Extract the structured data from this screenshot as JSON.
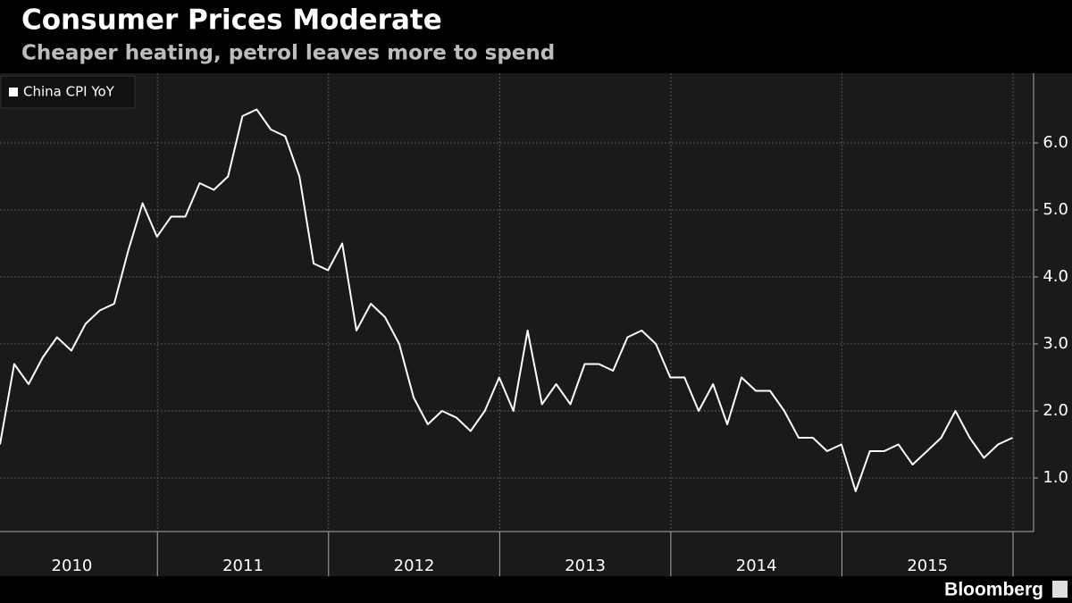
{
  "chart_data": {
    "type": "line",
    "title": "Consumer Prices Moderate",
    "subtitle": "Cheaper heating, petrol leaves more to spend",
    "source": "Bloomberg",
    "x": [
      2010,
      2010.083,
      2010.167,
      2010.25,
      2010.333,
      2010.417,
      2010.5,
      2010.583,
      2010.667,
      2010.75,
      2010.833,
      2010.917,
      2011,
      2011.083,
      2011.167,
      2011.25,
      2011.333,
      2011.417,
      2011.5,
      2011.583,
      2011.667,
      2011.75,
      2011.833,
      2011.917,
      2012,
      2012.083,
      2012.167,
      2012.25,
      2012.333,
      2012.417,
      2012.5,
      2012.583,
      2012.667,
      2012.75,
      2012.833,
      2012.917,
      2013,
      2013.083,
      2013.167,
      2013.25,
      2013.333,
      2013.417,
      2013.5,
      2013.583,
      2013.667,
      2013.75,
      2013.833,
      2013.917,
      2014,
      2014.083,
      2014.167,
      2014.25,
      2014.333,
      2014.417,
      2014.5,
      2014.583,
      2014.667,
      2014.75,
      2014.833,
      2014.917,
      2015,
      2015.083,
      2015.167,
      2015.25,
      2015.333,
      2015.417,
      2015.5,
      2015.583,
      2015.667,
      2015.75,
      2015.833,
      2015.917
    ],
    "series": [
      {
        "name": "China CPI YoY",
        "color": "#ffffff",
        "values": [
          1.5,
          2.7,
          2.4,
          2.8,
          3.1,
          2.9,
          3.3,
          3.5,
          3.6,
          4.4,
          5.1,
          4.6,
          4.9,
          4.9,
          5.4,
          5.3,
          5.5,
          6.4,
          6.5,
          6.2,
          6.1,
          5.5,
          4.2,
          4.1,
          4.5,
          3.2,
          3.6,
          3.4,
          3.0,
          2.2,
          1.8,
          2.0,
          1.9,
          1.7,
          2.0,
          2.5,
          2.0,
          3.2,
          2.1,
          2.4,
          2.1,
          2.7,
          2.7,
          2.6,
          3.1,
          3.2,
          3.0,
          2.5,
          2.5,
          2.0,
          2.4,
          1.8,
          2.5,
          2.3,
          2.3,
          2.0,
          1.6,
          1.6,
          1.4,
          1.5,
          0.8,
          1.4,
          1.4,
          1.5,
          1.2,
          1.4,
          1.6,
          2.0,
          1.6,
          1.3,
          1.5,
          1.6
        ]
      }
    ],
    "xlim": [
      2010,
      2016.04
    ],
    "xticks": [
      {
        "value": 2010.42,
        "label": "2010"
      },
      {
        "value": 2011.42,
        "label": "2011"
      },
      {
        "value": 2012.42,
        "label": "2012"
      },
      {
        "value": 2013.42,
        "label": "2013"
      },
      {
        "value": 2014.42,
        "label": "2014"
      },
      {
        "value": 2015.42,
        "label": "2015"
      }
    ],
    "ylim": [
      0.2,
      7.04
    ],
    "yticks": [
      {
        "value": 1,
        "label": "1.0"
      },
      {
        "value": 2,
        "label": "2.0"
      },
      {
        "value": 3,
        "label": "3.0"
      },
      {
        "value": 4,
        "label": "4.0"
      },
      {
        "value": 5,
        "label": "5.0"
      },
      {
        "value": 6,
        "label": "6.0"
      }
    ],
    "grid": true,
    "legend": "upper left"
  }
}
